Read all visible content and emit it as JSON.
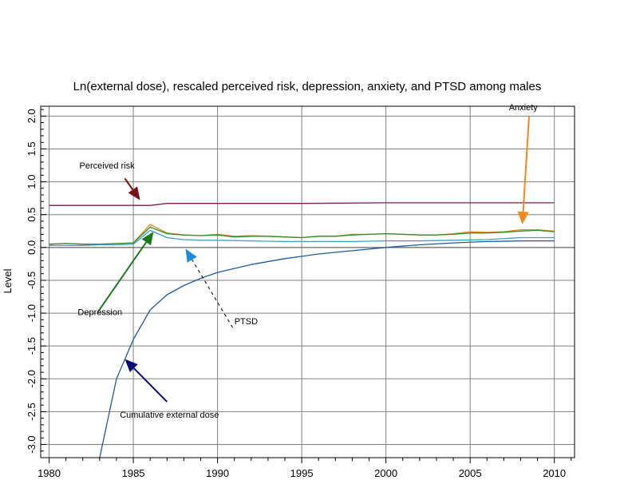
{
  "chart_data": {
    "type": "line",
    "title": "Ln(external dose), rescaled perceived risk, depression, anxiety, and PTSD among males",
    "xlabel": "",
    "ylabel": "Level",
    "xlim": [
      1979.5,
      2011.2
    ],
    "ylim": [
      -3.2,
      2.15
    ],
    "x_ticks": [
      "1980",
      "1985",
      "1990",
      "1995",
      "2000",
      "2005",
      "2010"
    ],
    "y_ticks": [
      "-3.0",
      "-2.5",
      "-2.0",
      "-1.5",
      "-1.0",
      "-0.5",
      "0.0",
      "0.5",
      "1.0",
      "1.5",
      "2.0"
    ],
    "grid": true,
    "series": [
      {
        "name": "Perceived risk",
        "color": "#7b1c4e",
        "x": [
          1980,
          1981,
          1982,
          1983,
          1984,
          1985,
          1986,
          1987,
          1990,
          1995,
          2000,
          2005,
          2010
        ],
        "y": [
          0.64,
          0.64,
          0.64,
          0.64,
          0.64,
          0.64,
          0.64,
          0.67,
          0.67,
          0.67,
          0.68,
          0.68,
          0.68
        ]
      },
      {
        "name": "Anxiety",
        "color": "#f08a1c",
        "x": [
          1980,
          1981,
          1982,
          1983,
          1984,
          1985,
          1986,
          1987,
          1988,
          1989,
          1990,
          1991,
          1992,
          1993,
          1994,
          1995,
          1996,
          1997,
          1998,
          1999,
          2000,
          2001,
          2002,
          2003,
          2004,
          2005,
          2006,
          2007,
          2008,
          2009,
          2010
        ],
        "y": [
          0.05,
          0.06,
          0.05,
          0.05,
          0.06,
          0.07,
          0.35,
          0.22,
          0.19,
          0.18,
          0.2,
          0.17,
          0.18,
          0.17,
          0.16,
          0.15,
          0.17,
          0.17,
          0.2,
          0.2,
          0.21,
          0.2,
          0.19,
          0.19,
          0.21,
          0.24,
          0.23,
          0.24,
          0.27,
          0.27,
          0.25
        ]
      },
      {
        "name": "Depression",
        "color": "#2e8b2e",
        "x": [
          1980,
          1981,
          1982,
          1983,
          1984,
          1985,
          1986,
          1987,
          1988,
          1989,
          1990,
          1991,
          1992,
          1993,
          1994,
          1995,
          1996,
          1997,
          1998,
          1999,
          2000,
          2001,
          2002,
          2003,
          2004,
          2005,
          2006,
          2007,
          2008,
          2009,
          2010
        ],
        "y": [
          0.05,
          0.06,
          0.05,
          0.05,
          0.06,
          0.07,
          0.31,
          0.21,
          0.19,
          0.18,
          0.19,
          0.16,
          0.17,
          0.17,
          0.16,
          0.15,
          0.17,
          0.17,
          0.19,
          0.2,
          0.21,
          0.2,
          0.19,
          0.19,
          0.2,
          0.22,
          0.22,
          0.23,
          0.25,
          0.26,
          0.24
        ]
      },
      {
        "name": "PTSD",
        "color": "#3aa0c8",
        "x": [
          1980,
          1981,
          1982,
          1983,
          1984,
          1985,
          1986,
          1987,
          1988,
          1989,
          1990,
          1992,
          1994,
          1996,
          1998,
          2000,
          2002,
          2004,
          2006,
          2008,
          2010
        ],
        "y": [
          0.03,
          0.03,
          0.03,
          0.04,
          0.04,
          0.05,
          0.26,
          0.15,
          0.12,
          0.11,
          0.11,
          0.1,
          0.09,
          0.09,
          0.09,
          0.1,
          0.1,
          0.11,
          0.12,
          0.15,
          0.15
        ]
      },
      {
        "name": "Cumulative external dose",
        "color": "#1e5a9e",
        "x": [
          1983,
          1984,
          1985,
          1986,
          1987,
          1988,
          1989,
          1990,
          1992,
          1994,
          1996,
          1998,
          2000,
          2002,
          2004,
          2006,
          2008,
          2010
        ],
        "y": [
          -3.2,
          -2.0,
          -1.4,
          -0.95,
          -0.72,
          -0.58,
          -0.47,
          -0.38,
          -0.26,
          -0.17,
          -0.1,
          -0.05,
          0.0,
          0.04,
          0.07,
          0.09,
          0.1,
          0.1
        ]
      }
    ],
    "annotations": [
      {
        "text": "Perceived risk",
        "color": "#7a1010",
        "label_x": 1981.8,
        "label_y": 1.2,
        "arrow_from": [
          1984.5,
          1.05
        ],
        "arrow_to": [
          1985.4,
          0.72
        ],
        "dashed": false
      },
      {
        "text": "Anxiety",
        "color": "#f08a1c",
        "label_x": 2007.3,
        "label_y": 2.09,
        "arrow_from": [
          2008.5,
          2.0
        ],
        "arrow_to": [
          2008.1,
          0.35
        ],
        "dashed": false
      },
      {
        "text": "Depression",
        "color": "#1a7a1a",
        "label_x": 1981.7,
        "label_y": -1.03,
        "arrow_from": [
          1982.9,
          -0.98
        ],
        "arrow_to": [
          1986.2,
          0.24
        ],
        "dashed": false
      },
      {
        "text": "PTSD",
        "color": "#1a8ae0",
        "label_x": 1991.0,
        "label_y": -1.17,
        "arrow_from": [
          1990.9,
          -1.22
        ],
        "arrow_to": [
          1988.1,
          -0.02
        ],
        "dashed": true
      },
      {
        "text": "Cumulative external dose",
        "color": "#0a0a80",
        "label_x": 1984.2,
        "label_y": -2.59,
        "arrow_from": [
          1987.0,
          -2.35
        ],
        "arrow_to": [
          1984.5,
          -1.7
        ],
        "dashed": false
      }
    ]
  }
}
